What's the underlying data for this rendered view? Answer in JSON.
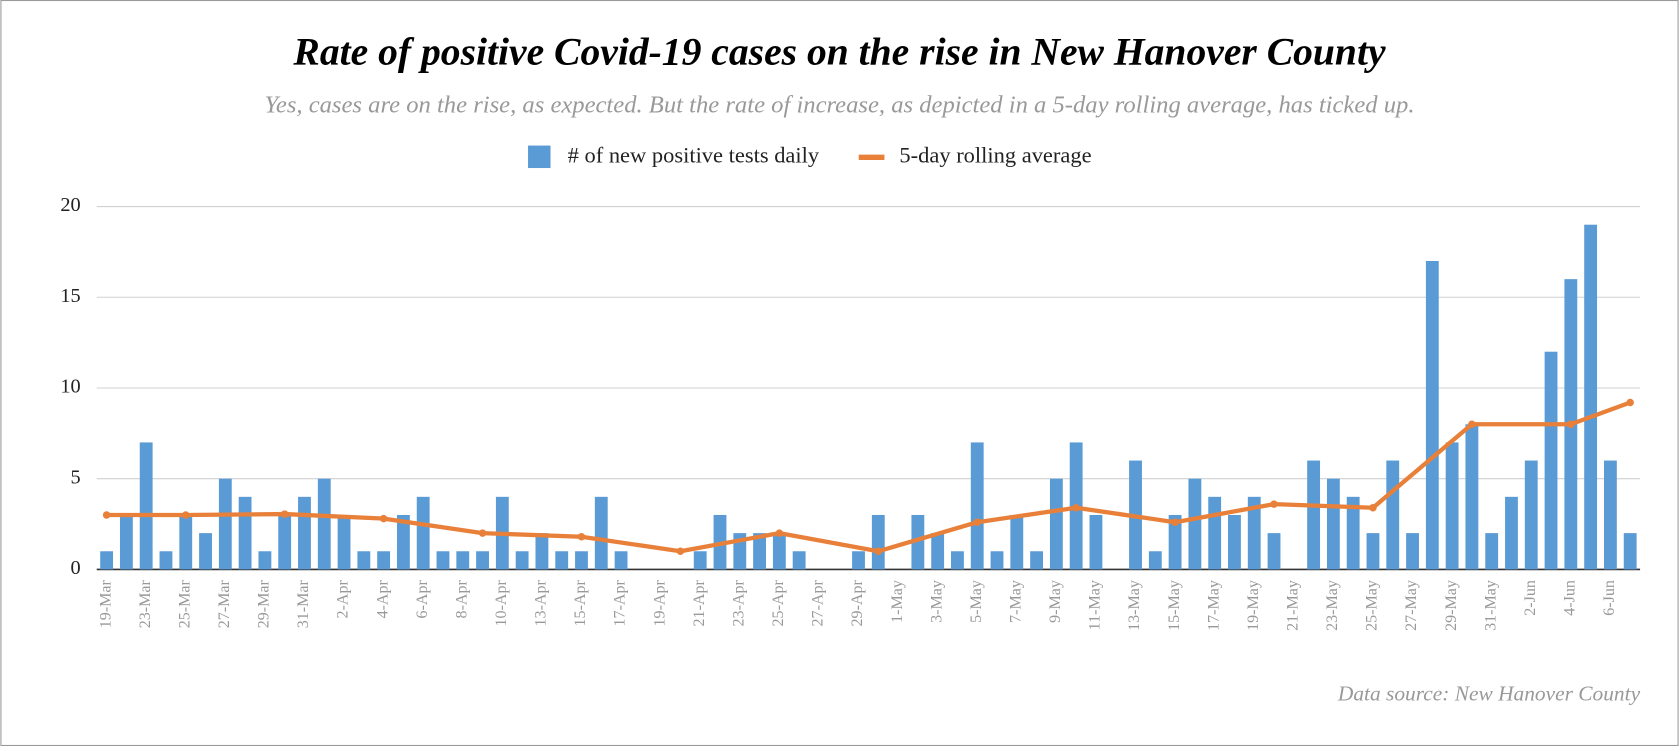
{
  "chart_data": {
    "type": "bar",
    "title": "Rate of positive Covid-19 cases on the rise in New Hanover County",
    "subtitle": "Yes, cases are on the rise, as expected. But the rate of increase, as depicted in a 5-day rolling average, has ticked up.",
    "source": "Data source: New Hanover County",
    "categories": [
      "19-Mar",
      null,
      "23-Mar",
      null,
      "25-Mar",
      null,
      "27-Mar",
      null,
      "29-Mar",
      null,
      "31-Mar",
      null,
      "2-Apr",
      null,
      "4-Apr",
      null,
      "6-Apr",
      null,
      "8-Apr",
      null,
      "10-Apr",
      null,
      "13-Apr",
      null,
      "15-Apr",
      null,
      "17-Apr",
      null,
      "19-Apr",
      null,
      "21-Apr",
      null,
      "23-Apr",
      null,
      "25-Apr",
      null,
      "27-Apr",
      null,
      "29-Apr",
      null,
      "1-May",
      null,
      "3-May",
      null,
      "5-May",
      null,
      "7-May",
      null,
      "9-May",
      null,
      "11-May",
      null,
      "13-May",
      null,
      "15-May",
      null,
      "17-May",
      null,
      "19-May",
      null,
      "21-May",
      null,
      "23-May",
      null,
      "25-May",
      null,
      "27-May",
      null,
      "29-May",
      null,
      "31-May",
      null,
      "2-Jun",
      null,
      "4-Jun",
      null,
      "6-Jun",
      null
    ],
    "series": [
      {
        "name": "# of new positive tests daily",
        "type": "bar",
        "color": "#5b9bd5",
        "values": [
          1,
          3,
          7,
          1,
          3,
          2,
          5,
          4,
          1,
          3,
          4,
          5,
          3,
          1,
          1,
          3,
          4,
          1,
          1,
          1,
          4,
          1,
          2,
          1,
          1,
          4,
          1,
          0,
          0,
          0,
          1,
          3,
          2,
          2,
          2,
          1,
          0,
          0,
          1,
          3,
          0,
          3,
          2,
          1,
          7,
          1,
          3,
          1,
          5,
          7,
          3,
          0,
          6,
          1,
          3,
          5,
          4,
          3,
          4,
          2,
          0,
          6,
          5,
          4,
          2,
          6,
          2,
          17,
          7,
          8,
          2,
          4,
          6,
          12,
          16,
          19,
          6,
          2
        ]
      },
      {
        "name": "5-day rolling average",
        "type": "line",
        "color": "#e8803a",
        "connect_gaps": true,
        "values": [
          3,
          null,
          null,
          null,
          3,
          null,
          null,
          null,
          null,
          3.05,
          null,
          null,
          null,
          null,
          2.8,
          null,
          null,
          null,
          null,
          2,
          null,
          null,
          null,
          null,
          1.8,
          null,
          null,
          null,
          null,
          1,
          null,
          null,
          null,
          null,
          2,
          null,
          null,
          null,
          null,
          1,
          null,
          null,
          null,
          null,
          2.6,
          null,
          null,
          null,
          null,
          3.4,
          null,
          null,
          null,
          null,
          2.6,
          null,
          null,
          null,
          null,
          3.6,
          null,
          null,
          null,
          null,
          3.4,
          null,
          null,
          null,
          null,
          8,
          null,
          null,
          null,
          null,
          8,
          null,
          null,
          9.2
        ]
      }
    ],
    "ylim": [
      0,
      20
    ],
    "yticks": [
      0,
      5,
      10,
      15,
      20
    ],
    "grid": true,
    "legend": "top"
  }
}
